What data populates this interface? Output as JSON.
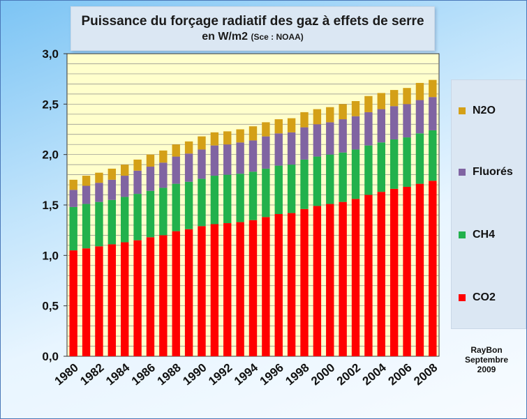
{
  "title": {
    "line1": "Puissance du forçage radiatif des gaz à effets de serre",
    "line2": "en W/m2",
    "source": "(Sce : NOAA)"
  },
  "credit": {
    "line1": "RayBon",
    "line2": "Septembre",
    "line3": "2009"
  },
  "colors": {
    "plot_background": "#ffffcc",
    "CO2": "#ff0000",
    "CH4": "#22b14c",
    "Fluorés": "#8064a2",
    "N2O": "#d4a017"
  },
  "chart_data": {
    "type": "bar",
    "stacked": true,
    "x": [
      1980,
      1981,
      1982,
      1983,
      1984,
      1985,
      1986,
      1987,
      1988,
      1989,
      1990,
      1991,
      1992,
      1993,
      1994,
      1995,
      1996,
      1997,
      1998,
      1999,
      2000,
      2001,
      2002,
      2003,
      2004,
      2005,
      2006,
      2007,
      2008
    ],
    "x_tick_labels": [
      "1980",
      "1982",
      "1984",
      "1986",
      "1988",
      "1990",
      "1992",
      "1994",
      "1996",
      "1998",
      "2000",
      "2002",
      "2004",
      "2006",
      "2008"
    ],
    "ylim": [
      0,
      3.0
    ],
    "y_tick_labels": [
      "0,0",
      "0,5",
      "1,0",
      "1,5",
      "2,0",
      "2,5",
      "3,0"
    ],
    "grid": true,
    "legend_position": "right",
    "series": [
      {
        "name": "CO2",
        "values": [
          1.05,
          1.07,
          1.09,
          1.11,
          1.13,
          1.15,
          1.18,
          1.2,
          1.24,
          1.26,
          1.29,
          1.31,
          1.32,
          1.33,
          1.35,
          1.38,
          1.41,
          1.42,
          1.46,
          1.49,
          1.51,
          1.53,
          1.56,
          1.6,
          1.63,
          1.66,
          1.68,
          1.71,
          1.74
        ]
      },
      {
        "name": "CH4",
        "values": [
          0.43,
          0.44,
          0.44,
          0.44,
          0.45,
          0.46,
          0.46,
          0.47,
          0.47,
          0.47,
          0.47,
          0.48,
          0.48,
          0.48,
          0.48,
          0.48,
          0.48,
          0.48,
          0.49,
          0.49,
          0.49,
          0.49,
          0.49,
          0.49,
          0.49,
          0.49,
          0.49,
          0.5,
          0.5
        ]
      },
      {
        "name": "Fluorés",
        "values": [
          0.17,
          0.18,
          0.19,
          0.2,
          0.21,
          0.23,
          0.24,
          0.25,
          0.27,
          0.28,
          0.29,
          0.3,
          0.3,
          0.31,
          0.31,
          0.32,
          0.32,
          0.32,
          0.32,
          0.32,
          0.32,
          0.33,
          0.33,
          0.33,
          0.33,
          0.33,
          0.33,
          0.33,
          0.33
        ]
      },
      {
        "name": "N2O",
        "values": [
          0.1,
          0.1,
          0.1,
          0.11,
          0.11,
          0.11,
          0.12,
          0.12,
          0.12,
          0.12,
          0.13,
          0.13,
          0.13,
          0.13,
          0.14,
          0.14,
          0.14,
          0.14,
          0.15,
          0.15,
          0.15,
          0.15,
          0.15,
          0.16,
          0.16,
          0.16,
          0.16,
          0.17,
          0.17
        ]
      }
    ],
    "legend_order": [
      "N2O",
      "Fluorés",
      "CH4",
      "CO2"
    ]
  }
}
